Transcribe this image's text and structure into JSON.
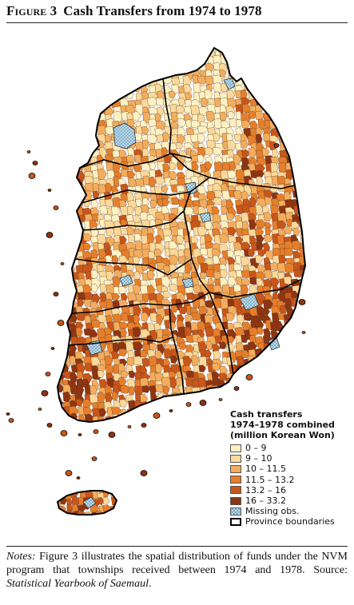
{
  "figure": {
    "label": "Figure 3",
    "title": "Cash Transfers from 1974 to 1978"
  },
  "legend": {
    "title_lines": [
      "Cash transfers",
      "1974–1978 combined",
      "(million Korean Won)"
    ],
    "classes": [
      {
        "label": "0 – 9",
        "color": "#fdf1c4"
      },
      {
        "label": "9 – 10",
        "color": "#fbd99a"
      },
      {
        "label": "10 – 11.5",
        "color": "#f3ad5e"
      },
      {
        "label": "11.5 – 13.2",
        "color": "#e57f2c"
      },
      {
        "label": "13.2 – 16",
        "color": "#c8561a"
      },
      {
        "label": "16 – 33.2",
        "color": "#8f3511"
      }
    ],
    "missing_label": "Missing obs.",
    "province_label": "Province boundaries"
  },
  "notes": {
    "lead": "Notes:",
    "text_1": " Figure 3 illustrates the spatial distribution of funds under the NVM program that townships received between 1974 and 1978. Source: ",
    "source": "Statistical Yearbook of Saemaul",
    "tail": "."
  }
}
